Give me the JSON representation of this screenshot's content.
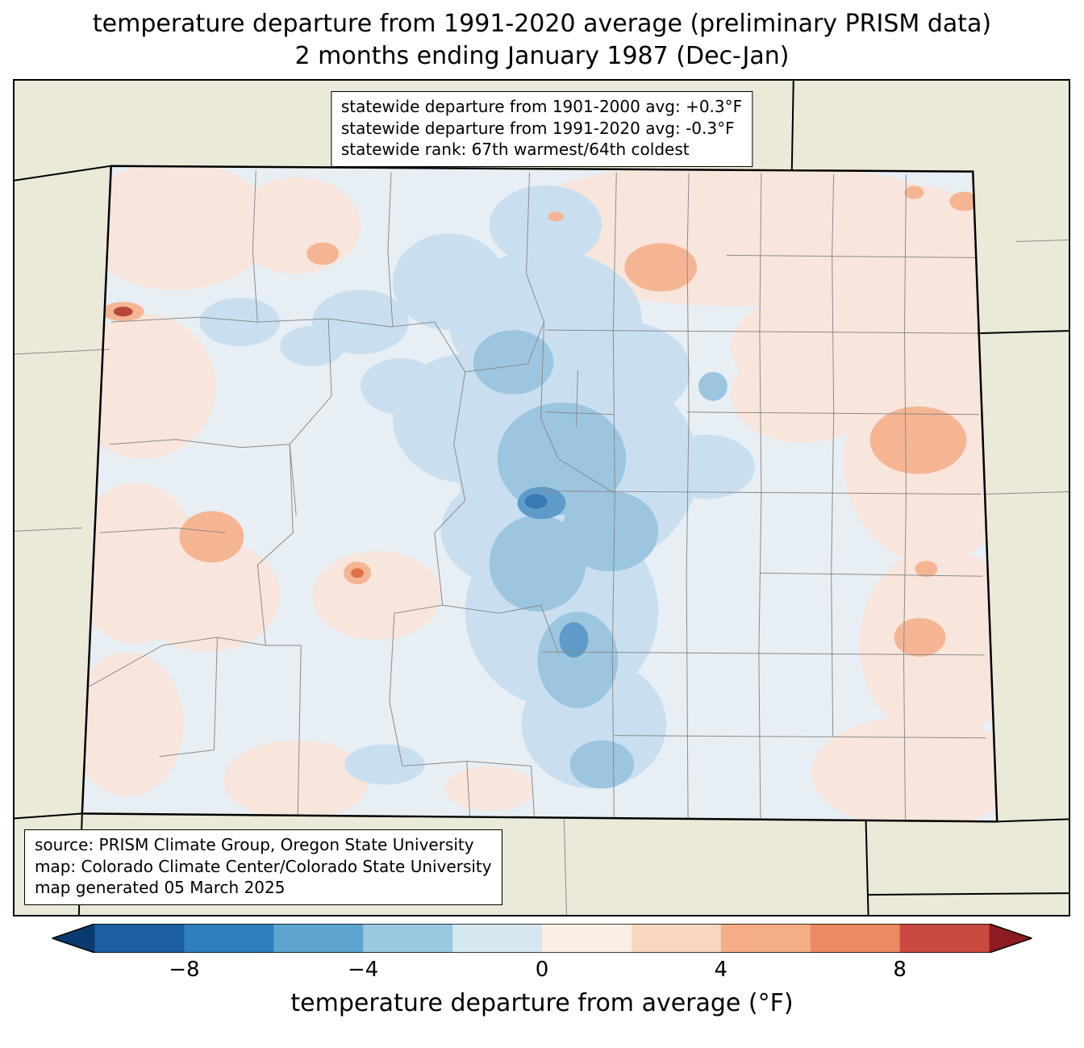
{
  "title": {
    "line1": "temperature departure from 1991-2020 average (preliminary PRISM data)",
    "line2": "2 months ending January 1987 (Dec-Jan)"
  },
  "stats_box": {
    "line1": "statewide departure from 1901-2000 avg: +0.3°F",
    "line2": "statewide departure from 1991-2020 avg: -0.3°F",
    "line3": "statewide rank: 67th warmest/64th coldest"
  },
  "source_box": {
    "line1": "source: PRISM Climate Group, Oregon State University",
    "line2": "map: Colorado Climate Center/Colorado State University",
    "line3": "map generated 05 March 2025"
  },
  "colorbar": {
    "label": "temperature departure from average (°F)",
    "ticks": [
      "−8",
      "−4",
      "0",
      "4",
      "8"
    ],
    "tick_positions": [
      10,
      30,
      50,
      70,
      90
    ],
    "value_range": [
      -10,
      10
    ],
    "segment_colors": [
      "#1d5da1",
      "#2f7ebd",
      "#5da4d0",
      "#9ac8e0",
      "#d6e7f1",
      "#faeee5",
      "#f8d6c0",
      "#f4ad85",
      "#ec8a63",
      "#c84a40"
    ],
    "left_arrow_color": "#0a3a6f",
    "right_arrow_color": "#8c1c21"
  },
  "map_colors": {
    "outside_land": "#ebe9d8",
    "state_base": "#e7eef4",
    "pale_pink": "#f8e5db",
    "light_blue": "#c9dff0",
    "medium_blue": "#9cc6e0",
    "strong_blue": "#5e9bc9",
    "darkest_blue": "#3979b4",
    "salmon": "#f5b593",
    "orange": "#e0714a",
    "dark_red": "#b8473a",
    "county_line": "#8b8b8b",
    "state_border": "#000000"
  }
}
